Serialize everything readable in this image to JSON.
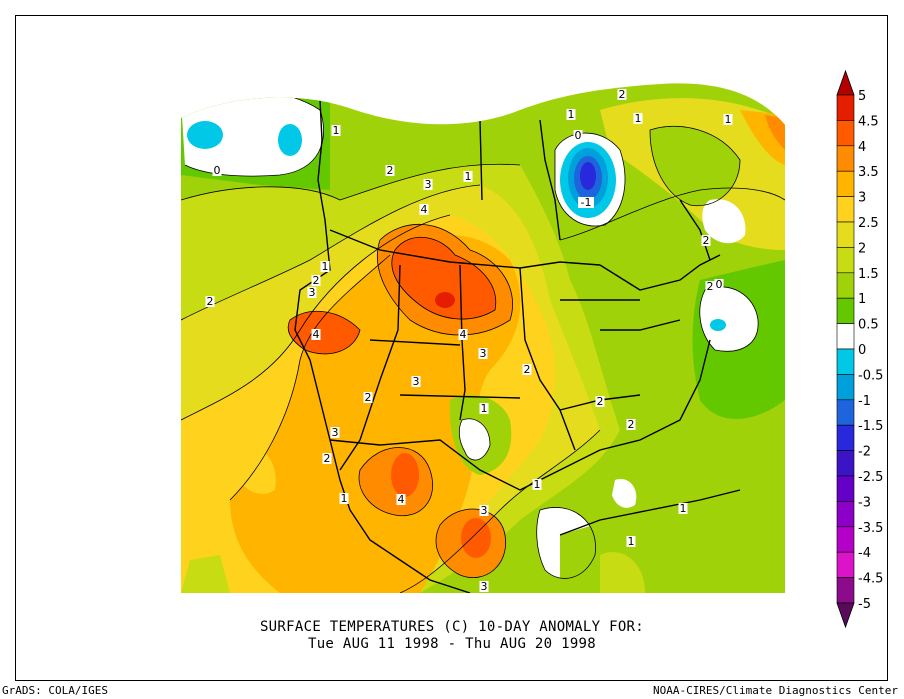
{
  "title_line1": "SURFACE TEMPERATURES (C)   10-DAY ANOMALY FOR:",
  "title_line2": "Tue AUG 11 1998 - Thu AUG 20 1998",
  "credit_left": "GrADS: COLA/IGES",
  "credit_right": "NOAA-CIRES/Climate Diagnostics Center",
  "colorbar": {
    "labels": [
      "5",
      "4.5",
      "4",
      "3.5",
      "3",
      "2.5",
      "2",
      "1.5",
      "1",
      "0.5",
      "0",
      "-0.5",
      "-1",
      "-1.5",
      "-2",
      "-2.5",
      "-3",
      "-3.5",
      "-4",
      "-4.5",
      "-5"
    ],
    "colors": [
      "#b40000",
      "#e61e00",
      "#ff5a00",
      "#ff8c00",
      "#ffb400",
      "#ffd21e",
      "#e6dc1e",
      "#c8dc14",
      "#a0d20a",
      "#64c800",
      "#ffffff",
      "#00c8e6",
      "#00a0dc",
      "#1e64dc",
      "#2828dc",
      "#3c14c8",
      "#6400c8",
      "#8c00c8",
      "#b400c8",
      "#dc14c8",
      "#8c0a8c",
      "#5a0a5a"
    ]
  },
  "contour_labels": [
    "1",
    "2",
    "3",
    "4",
    "0",
    "1",
    "2",
    "3",
    "4",
    "2",
    "3",
    "1",
    "2",
    "3",
    "4",
    "3",
    "2",
    "1",
    "2",
    "2",
    "4",
    "4",
    "3",
    "1",
    "1",
    "1",
    "1",
    "2",
    "2",
    "-1",
    "0",
    "1",
    "1",
    "2",
    "2",
    "0",
    "1",
    "3"
  ]
}
